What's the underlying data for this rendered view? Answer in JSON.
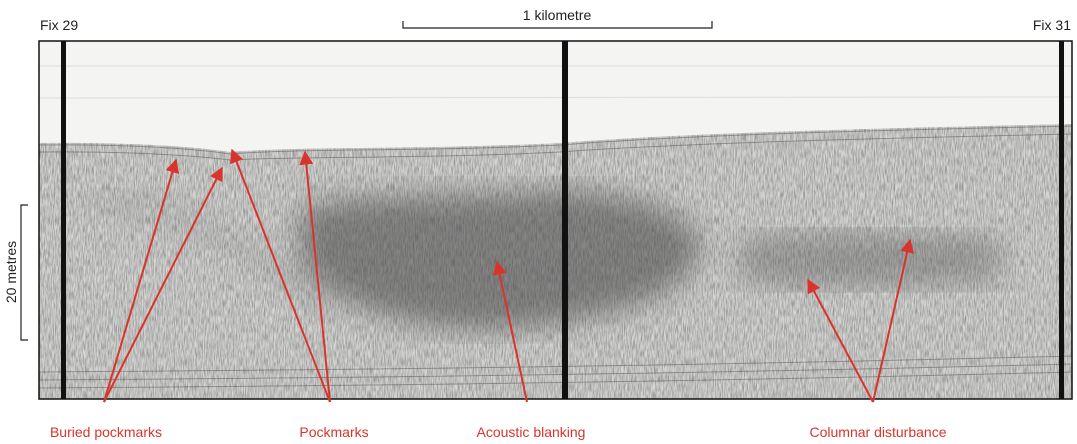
{
  "header": {
    "left_fix": "Fix 29",
    "scale": "1 kilometre",
    "right_fix": "Fix 31",
    "depth_scale": "20 metres"
  },
  "labels": [
    "Buried pockmarks",
    "Pockmarks",
    "Acoustic blanking",
    "Columnar disturbance"
  ]
}
